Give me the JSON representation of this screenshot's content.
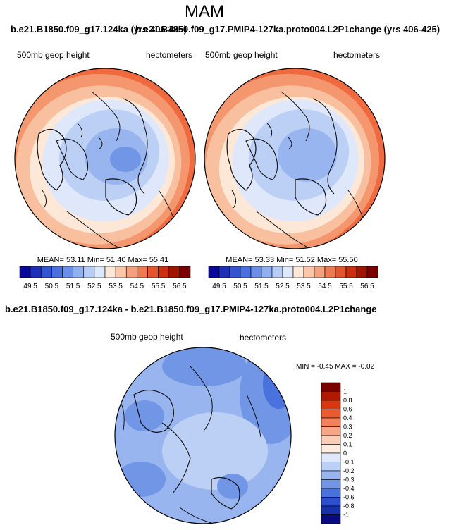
{
  "chart_data": {
    "type": "heatmap",
    "main_title": "MAM",
    "top_title_a": "b.e21.B1850.f09_g17.124ka (yrs 406-425)",
    "top_title_b": "b.e21.B1850.f09_g17.PMIP4-127ka.proto004.L2P1change (yrs 406-425)",
    "panels": [
      {
        "variable": "500mb geop height",
        "units": "hectometers",
        "stats": "MEAN=  53.11  Min=  51.40  Max=  55.41",
        "mean": 53.11,
        "min": 51.4,
        "max": 55.41
      },
      {
        "variable": "500mb geop height",
        "units": "hectometers",
        "stats": "MEAN=  53.33  Min=  51.52  Max=  55.50",
        "mean": 53.33,
        "min": 51.52,
        "max": 55.5
      }
    ],
    "colorbar_h": {
      "levels": [
        49.5,
        50,
        50.5,
        51,
        51.5,
        52,
        52.5,
        53,
        53.5,
        54,
        54.5,
        55,
        55.5,
        56,
        56.5
      ],
      "tick_labels": [
        "49.5",
        "50.5",
        "51.5",
        "52.5",
        "53.5",
        "54.5",
        "55.5",
        "56.5"
      ],
      "colors": [
        "#08089a",
        "#1f30b8",
        "#3355d4",
        "#4a70e0",
        "#6a8fe8",
        "#8fb0f0",
        "#b8cdf6",
        "#dde9fb",
        "#fde8d8",
        "#fbc6aa",
        "#f5a07c",
        "#ee7a52",
        "#e4552e",
        "#c92e10",
        "#a01500",
        "#7a0000"
      ]
    },
    "diff_panel": {
      "title": "b.e21.B1850.f09_g17.124ka - b.e21.B1850.f09_g17.PMIP4-127ka.proto004.L2P1change",
      "variable": "500mb geop height",
      "units": "hectometers",
      "stats": "MIN =  -0.45 MAX =  -0.02",
      "min": -0.45,
      "max": -0.02
    },
    "colorbar_v": {
      "levels": [
        1,
        0.8,
        0.6,
        0.4,
        0.3,
        0.2,
        0.1,
        0,
        -0.1,
        -0.2,
        -0.3,
        -0.4,
        -0.6,
        -0.8,
        -1
      ],
      "tick_labels": [
        "1",
        "0.8",
        "0.6",
        "0.4",
        "0.3",
        "0.2",
        "0.1",
        "0",
        "-0.1",
        "-0.2",
        "-0.3",
        "-0.4",
        "-0.6",
        "-0.8",
        "-1"
      ],
      "colors": [
        "#7a0000",
        "#b01800",
        "#d8380e",
        "#eb5a30",
        "#f2805a",
        "#f6a585",
        "#fbcdb6",
        "#fdebe0",
        "#dfe8fb",
        "#bcd0f6",
        "#98b5ef",
        "#7196e6",
        "#4a72dc",
        "#2c50cc",
        "#1a30a8",
        "#0a0a80"
      ]
    }
  }
}
